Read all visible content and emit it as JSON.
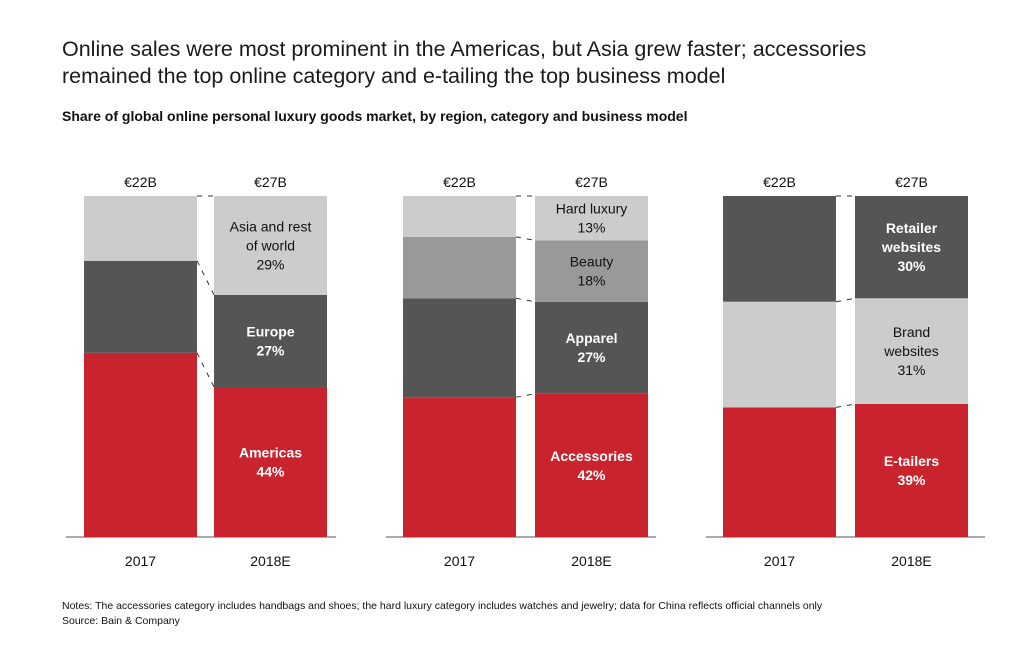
{
  "headline": {
    "line1": "Online sales were most prominent in the Americas, but Asia grew faster; accessories",
    "line2": "remained the top online category and e-tailing the top business model"
  },
  "subtitle": "Share of global online personal luxury goods market, by region, category and business model",
  "chart_data": [
    {
      "type": "bar",
      "stacked": true,
      "normalized": true,
      "dimension": "region",
      "categories": [
        "2017",
        "2018E"
      ],
      "totals": [
        "€22B",
        "€27B"
      ],
      "series": [
        {
          "name": "Americas",
          "label": "Americas",
          "values": [
            54,
            44
          ],
          "value_labels": [
            "",
            "44%"
          ],
          "color": "#c9232d"
        },
        {
          "name": "Europe",
          "label": "Europe",
          "values": [
            27,
            27
          ],
          "value_labels": [
            "",
            "27%"
          ],
          "color": "#555555"
        },
        {
          "name": "Asia and rest of world",
          "label": "Asia and rest\nof world",
          "values": [
            19,
            29
          ],
          "value_labels": [
            "",
            "29%"
          ],
          "color": "#cccccc"
        }
      ]
    },
    {
      "type": "bar",
      "stacked": true,
      "normalized": true,
      "dimension": "category",
      "categories": [
        "2017",
        "2018E"
      ],
      "totals": [
        "€22B",
        "€27B"
      ],
      "series": [
        {
          "name": "Accessories",
          "label": "Accessories",
          "values": [
            41,
            42
          ],
          "value_labels": [
            "",
            "42%"
          ],
          "color": "#c9232d"
        },
        {
          "name": "Apparel",
          "label": "Apparel",
          "values": [
            29,
            27
          ],
          "value_labels": [
            "",
            "27%"
          ],
          "color": "#555555"
        },
        {
          "name": "Beauty",
          "label": "Beauty",
          "values": [
            18,
            18
          ],
          "value_labels": [
            "",
            "18%"
          ],
          "color": "#999999"
        },
        {
          "name": "Hard luxury",
          "label": "Hard luxury",
          "values": [
            12,
            13
          ],
          "value_labels": [
            "",
            "13%"
          ],
          "color": "#cccccc"
        }
      ]
    },
    {
      "type": "bar",
      "stacked": true,
      "normalized": true,
      "dimension": "business model",
      "categories": [
        "2017",
        "2018E"
      ],
      "totals": [
        "€22B",
        "€27B"
      ],
      "series": [
        {
          "name": "E-tailers",
          "label": "E-tailers",
          "values": [
            38,
            39
          ],
          "value_labels": [
            "",
            "39%"
          ],
          "color": "#c9232d"
        },
        {
          "name": "Brand websites",
          "label": "Brand\nwebsites",
          "values": [
            31,
            31
          ],
          "value_labels": [
            "",
            "31%"
          ],
          "color": "#cccccc"
        },
        {
          "name": "Retailer websites",
          "label": "Retailer\nwebsites",
          "values": [
            31,
            30
          ],
          "value_labels": [
            "",
            "30%"
          ],
          "color": "#555555"
        }
      ]
    }
  ],
  "notes": {
    "line1": "Notes: The accessories category includes handbags and shoes; the hard luxury category includes watches and jewelry; data for China reflects official channels only",
    "line2": "Source: Bain & Company"
  }
}
